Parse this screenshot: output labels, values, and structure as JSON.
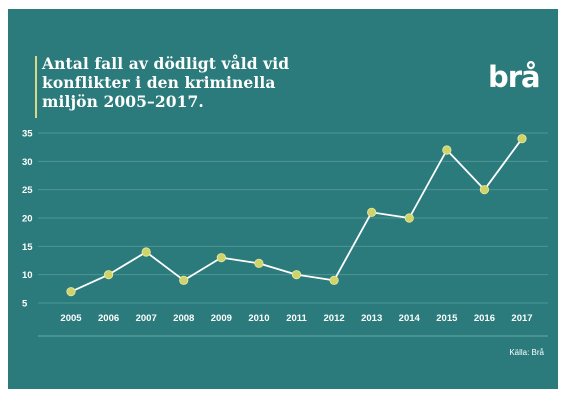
{
  "title": "Antal fall av dödligt våld vid\nkonflikter i den kriminella\nmiljön 2005–2017.",
  "logo_text": "brå",
  "source_note": "Källa: Brå",
  "colors": {
    "background": "#2b7b7c",
    "line": "#ffffff",
    "marker": "#cfd36a",
    "accent": "#d6d98a"
  },
  "chart_data": {
    "type": "line",
    "categories": [
      "2005",
      "2006",
      "2007",
      "2008",
      "2009",
      "2010",
      "2011",
      "2012",
      "2013",
      "2014",
      "2015",
      "2016",
      "2017"
    ],
    "values": [
      7,
      10,
      14,
      9,
      13,
      12,
      10,
      9,
      21,
      20,
      32,
      25,
      34
    ],
    "y_ticks": [
      5,
      10,
      15,
      20,
      25,
      30,
      35
    ],
    "ylim": [
      5,
      35
    ],
    "grid": true,
    "legend": "none"
  }
}
